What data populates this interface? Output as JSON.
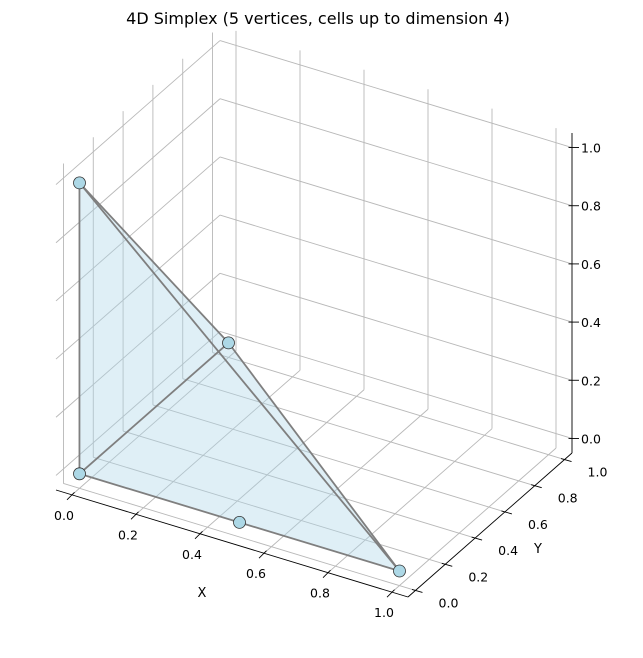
{
  "chart_data": {
    "type": "scatter",
    "projection": "3d",
    "title": "4D Simplex (5 vertices, cells up to dimension 4)",
    "xlabel": "X",
    "ylabel": "Y",
    "zlabel": "",
    "xlim": [
      -0.05,
      1.05
    ],
    "ylim": [
      -0.05,
      1.05
    ],
    "zlim": [
      -0.05,
      1.05
    ],
    "xticks": [
      "0.0",
      "0.2",
      "0.4",
      "0.6",
      "0.8",
      "1.0"
    ],
    "yticks": [
      "0.0",
      "0.2",
      "0.4",
      "0.6",
      "0.8",
      "1.0"
    ],
    "zticks": [
      "0.0",
      "0.2",
      "0.4",
      "0.6",
      "0.8",
      "1.0"
    ],
    "grid": true,
    "vertices": [
      {
        "x": 0.0,
        "y": 0.0,
        "z": 0.0
      },
      {
        "x": 1.0,
        "y": 0.0,
        "z": 0.0
      },
      {
        "x": 0.0,
        "y": 1.0,
        "z": 0.0
      },
      {
        "x": 0.0,
        "y": 0.0,
        "z": 1.0
      },
      {
        "x": 0.5,
        "y": 0.0,
        "z": 0.0
      }
    ],
    "edges": [
      [
        0,
        1
      ],
      [
        0,
        2
      ],
      [
        0,
        3
      ],
      [
        1,
        2
      ],
      [
        1,
        3
      ],
      [
        2,
        3
      ]
    ],
    "faces": [
      [
        0,
        1,
        2
      ],
      [
        0,
        1,
        3
      ],
      [
        0,
        2,
        3
      ],
      [
        1,
        2,
        3
      ]
    ],
    "colors": {
      "vertex_fill": "#add8e6",
      "vertex_edge": "#333333",
      "edge": "#7f7f7f",
      "face": "#add8e6",
      "grid": "#b8b8b8"
    }
  }
}
